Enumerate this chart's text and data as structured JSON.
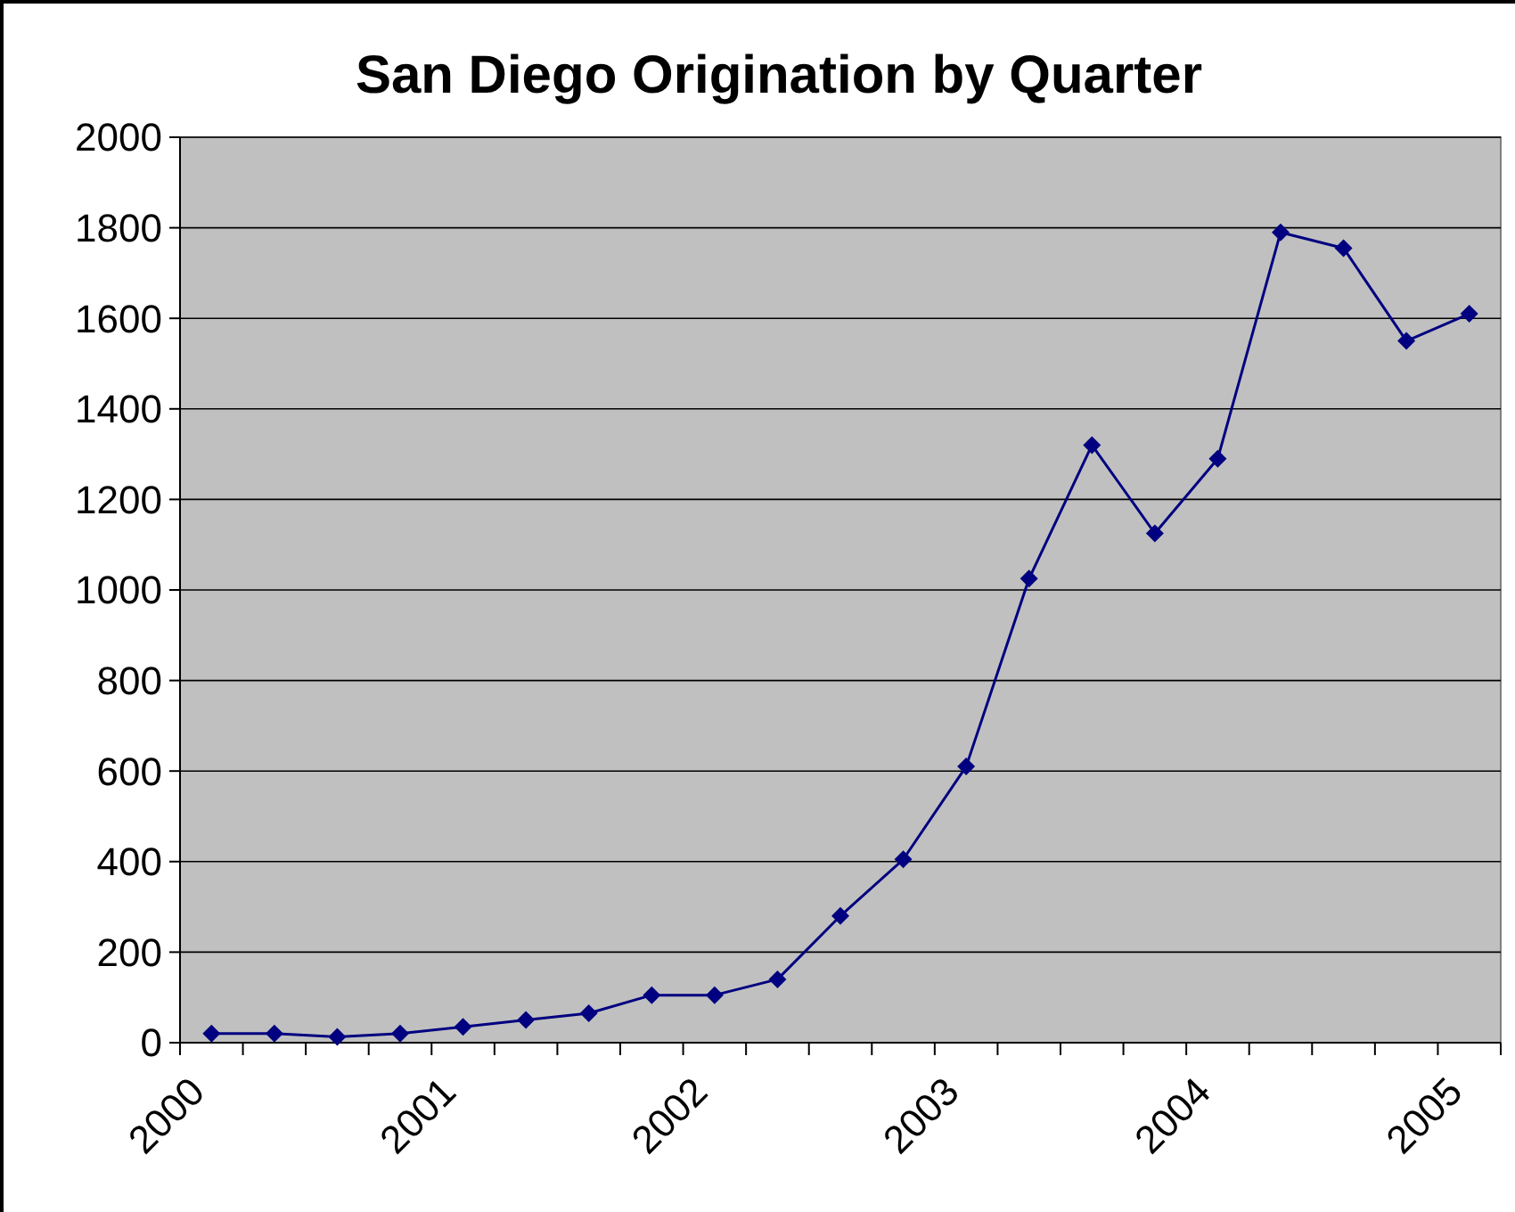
{
  "chart_data": {
    "type": "line",
    "title": "San Diego Origination by Quarter",
    "x": [
      2000.125,
      2000.375,
      2000.625,
      2000.875,
      2001.125,
      2001.375,
      2001.625,
      2001.875,
      2002.125,
      2002.375,
      2002.625,
      2002.875,
      2003.125,
      2003.375,
      2003.625,
      2003.875,
      2004.125,
      2004.375,
      2004.625,
      2004.875,
      2005.125
    ],
    "series": [
      {
        "color": "#000080",
        "values": [
          20,
          20,
          13,
          20,
          35,
          50,
          65,
          105,
          105,
          140,
          280,
          405,
          610,
          1025,
          1320,
          1125,
          1290,
          1790,
          1755,
          1550,
          1610
        ]
      }
    ],
    "xlim": [
      2000,
      2005.25
    ],
    "xticks": [
      2000,
      {
        "value": 2000.25,
        "label": null
      },
      {
        "value": 2000.5,
        "label": null
      },
      {
        "value": 2000.75,
        "label": null
      },
      2001,
      {
        "value": 2001.25,
        "label": null
      },
      {
        "value": 2001.5,
        "label": null
      },
      {
        "value": 2001.75,
        "label": null
      },
      2002,
      {
        "value": 2002.25,
        "label": null
      },
      {
        "value": 2002.5,
        "label": null
      },
      {
        "value": 2002.75,
        "label": null
      },
      2003,
      {
        "value": 2003.25,
        "label": null
      },
      {
        "value": 2003.5,
        "label": null
      },
      {
        "value": 2003.75,
        "label": null
      },
      2004,
      {
        "value": 2004.25,
        "label": null
      },
      {
        "value": 2004.5,
        "label": null
      },
      {
        "value": 2004.75,
        "label": null
      },
      2005,
      {
        "value": 2005.25,
        "label": null
      }
    ],
    "ylim": [
      0,
      2000
    ],
    "yticks": [
      0,
      200,
      400,
      600,
      800,
      1000,
      1200,
      1400,
      1600,
      1800,
      2000
    ],
    "grid": "y",
    "marker": "diamond",
    "line_style": "solid"
  }
}
